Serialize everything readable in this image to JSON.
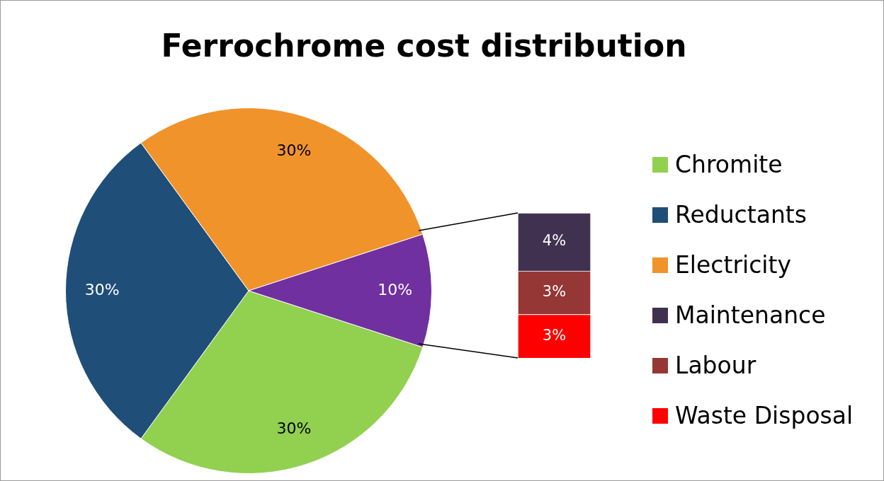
{
  "chart_data": [
    {
      "type": "pie",
      "title": "Ferrochrome cost distribution",
      "categories": [
        "Chromite",
        "Reductants",
        "Electricity",
        null
      ],
      "values": [
        30,
        30,
        30,
        10
      ],
      "value_labels": [
        "30%",
        "30%",
        "30%",
        "10%"
      ],
      "colors": [
        "#92d050",
        "#1f4e79",
        "#f0932b",
        "#7030a0"
      ],
      "legend": "right"
    },
    {
      "type": "bar",
      "stacked": true,
      "categories": [
        null
      ],
      "series": [
        {
          "name": "Waste Disposal",
          "color": "#ff0000",
          "values": [
            3
          ],
          "value_labels": [
            "3%"
          ]
        },
        {
          "name": "Labour",
          "color": "#953735",
          "values": [
            3
          ],
          "value_labels": [
            "3%"
          ]
        },
        {
          "name": "Maintenance",
          "color": "#403151",
          "values": [
            4
          ],
          "value_labels": [
            "4%"
          ]
        }
      ],
      "legend": "right"
    }
  ]
}
